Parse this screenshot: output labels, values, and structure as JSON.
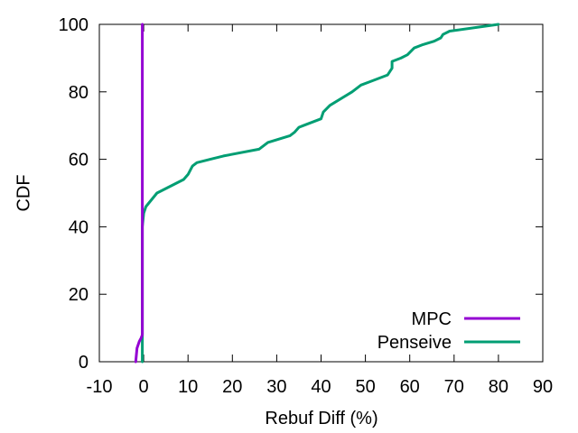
{
  "chart_data": {
    "type": "line",
    "xlabel": "Rebuf Diff (%)",
    "ylabel": "CDF",
    "xlim": [
      -10,
      90
    ],
    "ylim": [
      0,
      100
    ],
    "xticks": [
      -10,
      0,
      10,
      20,
      30,
      40,
      50,
      60,
      70,
      80,
      90
    ],
    "yticks": [
      0,
      20,
      40,
      60,
      80,
      100
    ],
    "grid": false,
    "legend_position": "bottom-right",
    "series": [
      {
        "name": "MPC",
        "color": "#9400d3",
        "points": [
          [
            -1.8,
            0
          ],
          [
            -1.5,
            4
          ],
          [
            -1,
            6
          ],
          [
            -0.6,
            7
          ],
          [
            -0.3,
            8
          ],
          [
            -0.3,
            100
          ]
        ]
      },
      {
        "name": "Penseive",
        "color": "#009e73",
        "points": [
          [
            -0.3,
            0
          ],
          [
            -0.3,
            40
          ],
          [
            0,
            44
          ],
          [
            0.5,
            46
          ],
          [
            3,
            50
          ],
          [
            9,
            54
          ],
          [
            10,
            55.5
          ],
          [
            11,
            58
          ],
          [
            12,
            59
          ],
          [
            15,
            60
          ],
          [
            18,
            61
          ],
          [
            26,
            63
          ],
          [
            28,
            65
          ],
          [
            33,
            67
          ],
          [
            34,
            68
          ],
          [
            35,
            69.5
          ],
          [
            36,
            70
          ],
          [
            40,
            72
          ],
          [
            40.5,
            74
          ],
          [
            42,
            76
          ],
          [
            47,
            80
          ],
          [
            49,
            82
          ],
          [
            51,
            83
          ],
          [
            55,
            85
          ],
          [
            56,
            87
          ],
          [
            56,
            89
          ],
          [
            58,
            90
          ],
          [
            59.5,
            91
          ],
          [
            61,
            93
          ],
          [
            63,
            94
          ],
          [
            65.5,
            95
          ],
          [
            67,
            96
          ],
          [
            67.5,
            97
          ],
          [
            69,
            98
          ],
          [
            80,
            100
          ]
        ]
      }
    ]
  }
}
